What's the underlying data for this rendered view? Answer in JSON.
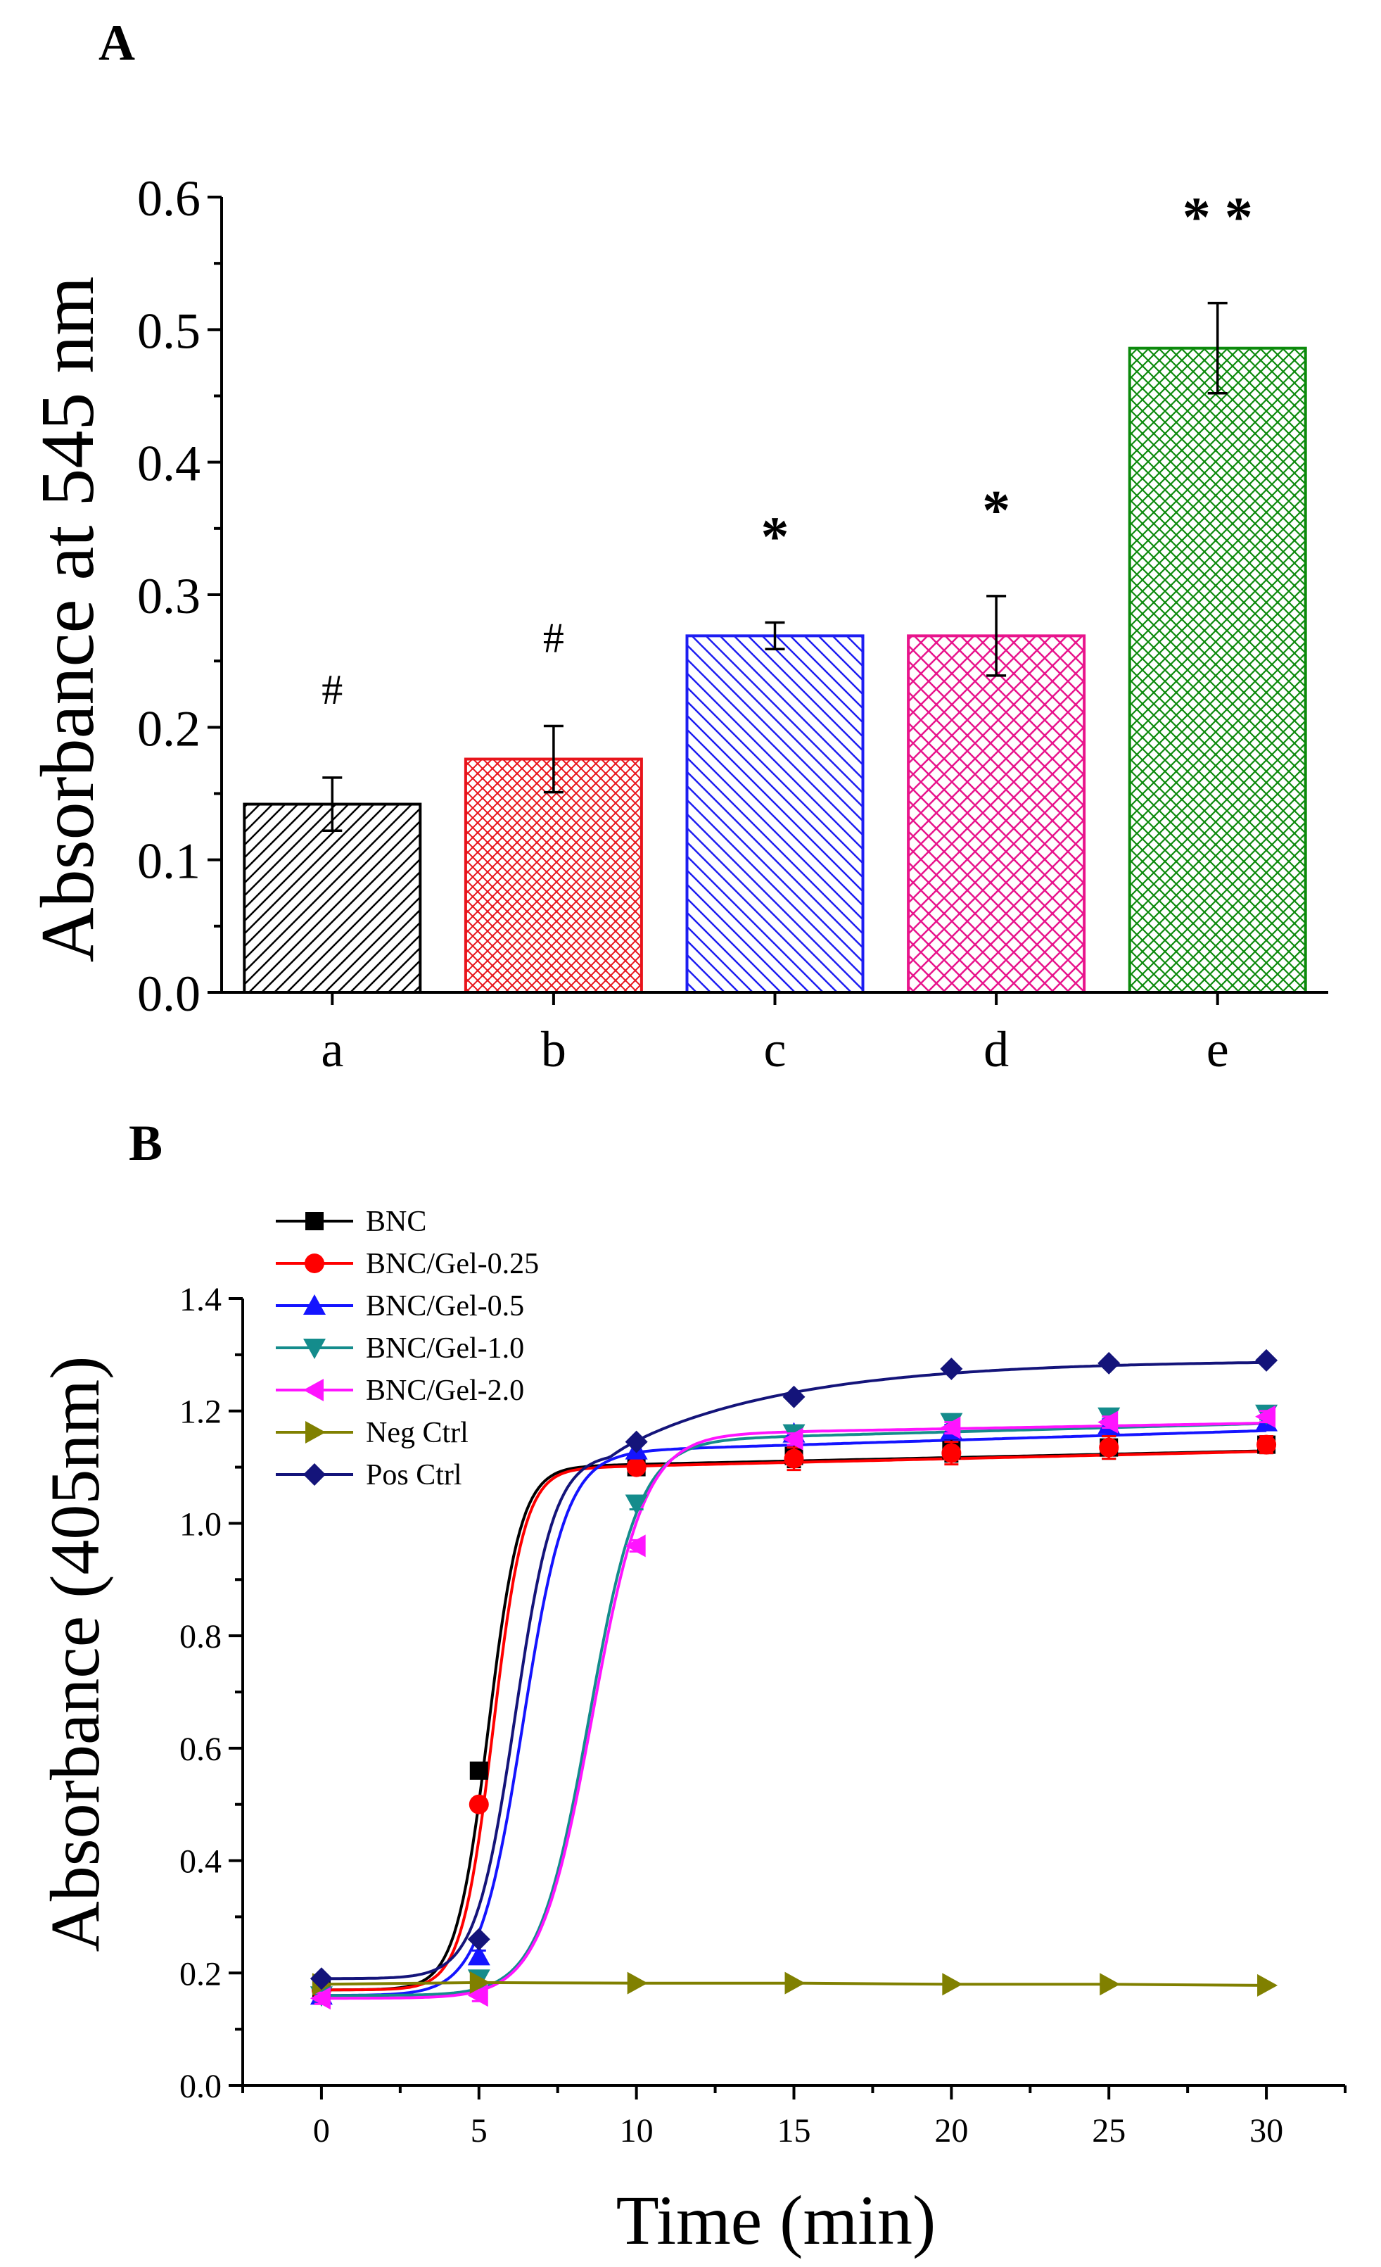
{
  "chart_data": [
    {
      "panel": "A",
      "type": "bar",
      "ylabel": "Absorbance at 545 nm",
      "xlabel": "",
      "ylim": [
        0.0,
        0.6
      ],
      "yticks": [
        "0.0",
        "0.1",
        "0.2",
        "0.3",
        "0.4",
        "0.5",
        "0.6"
      ],
      "categories": [
        "a",
        "b",
        "c",
        "d",
        "e"
      ],
      "values": [
        0.142,
        0.176,
        0.269,
        0.269,
        0.486
      ],
      "errors": [
        0.02,
        0.025,
        0.01,
        0.03,
        0.034
      ],
      "significance": [
        "#",
        "#",
        "*",
        "*",
        "* *"
      ],
      "colors": [
        "#000000",
        "#e8141b",
        "#1d1df2",
        "#e8148c",
        "#0c8a0c"
      ],
      "patterns": [
        "diag-up",
        "cross-fine",
        "diag-down",
        "cross",
        "cross-fine"
      ],
      "grid": false
    },
    {
      "panel": "B",
      "type": "line",
      "xlabel": "Time (min)",
      "ylabel": "Absorbance (405nm)",
      "xlim": [
        -2.5,
        32.5
      ],
      "ylim": [
        0.0,
        1.4
      ],
      "xticks": [
        "0",
        "5",
        "10",
        "15",
        "20",
        "25",
        "30"
      ],
      "yticks": [
        "0.0",
        "0.2",
        "0.4",
        "0.6",
        "0.8",
        "1.0",
        "1.2",
        "1.4"
      ],
      "x": [
        0,
        5,
        10,
        15,
        20,
        25,
        30
      ],
      "legend_position": "top-left",
      "grid": false,
      "series": [
        {
          "name": "BNC",
          "color": "#000000",
          "marker": "square",
          "values": [
            0.17,
            0.56,
            1.1,
            1.12,
            1.13,
            1.135,
            1.14
          ],
          "errors": [
            0.01,
            0.01,
            0.01,
            0.02,
            0.02,
            0.02,
            0.015
          ],
          "curve": {
            "low": 0.17,
            "high": 1.103,
            "mid": 5.3,
            "k": 1.95,
            "slope": 0.0012
          }
        },
        {
          "name": "BNC/Gel-0.25",
          "color": "#ff0000",
          "marker": "circle",
          "values": [
            0.17,
            0.5,
            1.1,
            1.115,
            1.125,
            1.135,
            1.14
          ],
          "errors": [
            0.01,
            0.01,
            0.01,
            0.02,
            0.02,
            0.02,
            0.015
          ],
          "curve": {
            "low": 0.17,
            "high": 1.1,
            "mid": 5.45,
            "k": 2.0,
            "slope": 0.0013
          }
        },
        {
          "name": "BNC/Gel-0.5",
          "color": "#1414ff",
          "marker": "triangle-up",
          "values": [
            0.16,
            0.23,
            1.13,
            1.16,
            1.165,
            1.175,
            1.18
          ],
          "errors": [
            0.01,
            0.01,
            0.01,
            0.01,
            0.01,
            0.01,
            0.01
          ],
          "curve": {
            "low": 0.16,
            "high": 1.13,
            "mid": 6.4,
            "k": 1.45,
            "slope": 0.0017
          }
        },
        {
          "name": "BNC/Gel-1.0",
          "color": "#148c8c",
          "marker": "triangle-down",
          "values": [
            0.16,
            0.19,
            1.035,
            1.16,
            1.18,
            1.19,
            1.195
          ],
          "errors": [
            0.01,
            0.01,
            0.01,
            0.01,
            0.01,
            0.01,
            0.01
          ],
          "curve": {
            "low": 0.16,
            "high": 1.15,
            "mid": 8.5,
            "k": 1.25,
            "slope": 0.0015
          }
        },
        {
          "name": "BNC/Gel-2.0",
          "color": "#ff14ff",
          "marker": "triangle-left",
          "values": [
            0.155,
            0.16,
            0.96,
            1.15,
            1.17,
            1.18,
            1.19
          ],
          "errors": [
            0.01,
            0.01,
            0.01,
            0.01,
            0.01,
            0.01,
            0.01
          ],
          "curve": {
            "low": 0.155,
            "high": 1.16,
            "mid": 8.6,
            "k": 1.2,
            "slope": 0.001
          }
        },
        {
          "name": "Neg Ctrl",
          "color": "#808000",
          "marker": "triangle-right",
          "values": [
            0.18,
            0.183,
            0.182,
            0.182,
            0.18,
            0.18,
            0.178
          ],
          "errors": [
            0.005,
            0.005,
            0.005,
            0.005,
            0.005,
            0.005,
            0.005
          ],
          "curve": null
        },
        {
          "name": "Pos Ctrl",
          "color": "#14147a",
          "marker": "diamond",
          "values": [
            0.19,
            0.26,
            1.145,
            1.225,
            1.275,
            1.285,
            1.29
          ],
          "errors": [
            0.005,
            0.005,
            0.005,
            0.005,
            0.005,
            0.005,
            0.005
          ],
          "curve": {
            "low": 0.19,
            "high": 1.125,
            "mid": 6.15,
            "k": 1.6,
            "slope": 0.0072,
            "plateau": 1.29
          }
        }
      ]
    }
  ]
}
